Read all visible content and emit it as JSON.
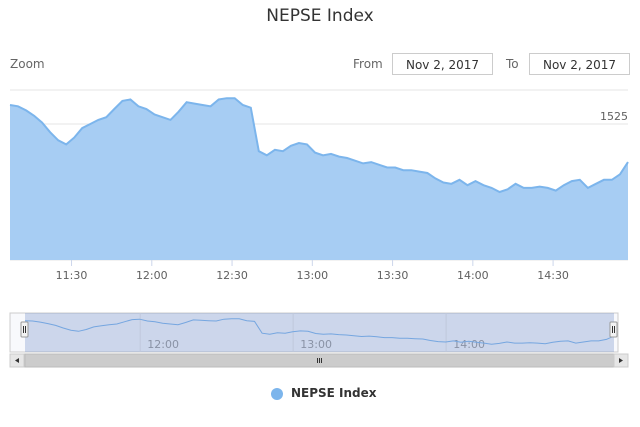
{
  "controls": {
    "zoom_label": "Zoom",
    "from_label": "From",
    "from_value": "Nov 2, 2017",
    "to_label": "To",
    "to_value": "Nov 2, 2017"
  },
  "colors": {
    "series_fill": "#a7cdf3",
    "series_line": "#7cb5ec",
    "navigator_mask": "rgba(102,133,194,0.3)",
    "grid": "#e6e6e6"
  },
  "chart_data": {
    "type": "area",
    "title": "NEPSE Index",
    "series": [
      {
        "name": "NEPSE Index",
        "x": [
          "11:07",
          "11:10",
          "11:13",
          "11:16",
          "11:19",
          "11:22",
          "11:25",
          "11:28",
          "11:31",
          "11:34",
          "11:37",
          "11:40",
          "11:43",
          "11:46",
          "11:49",
          "11:52",
          "11:55",
          "11:58",
          "12:01",
          "12:04",
          "12:07",
          "12:10",
          "12:13",
          "12:16",
          "12:19",
          "12:22",
          "12:25",
          "12:28",
          "12:31",
          "12:34",
          "12:37",
          "12:40",
          "12:43",
          "12:46",
          "12:49",
          "12:52",
          "12:55",
          "12:58",
          "13:01",
          "13:04",
          "13:07",
          "13:10",
          "13:13",
          "13:16",
          "13:19",
          "13:22",
          "13:25",
          "13:28",
          "13:31",
          "13:34",
          "13:37",
          "13:40",
          "13:43",
          "13:46",
          "13:49",
          "13:52",
          "13:55",
          "13:58",
          "14:01",
          "14:04",
          "14:07",
          "14:10",
          "14:13",
          "14:16",
          "14:19",
          "14:22",
          "14:25",
          "14:28",
          "14:31",
          "14:34",
          "14:37",
          "14:40",
          "14:43",
          "14:46",
          "14:49",
          "14:52",
          "14:55",
          "14:58"
        ],
        "values": [
          1526.4,
          1526.3,
          1526.0,
          1525.6,
          1525.1,
          1524.4,
          1523.8,
          1523.5,
          1524.0,
          1524.7,
          1525.0,
          1525.3,
          1525.5,
          1526.1,
          1526.7,
          1526.8,
          1526.3,
          1526.1,
          1525.7,
          1525.5,
          1525.3,
          1525.9,
          1526.6,
          1526.5,
          1526.4,
          1526.3,
          1526.8,
          1526.9,
          1526.9,
          1526.4,
          1526.2,
          1523.0,
          1522.7,
          1523.1,
          1523.0,
          1523.4,
          1523.6,
          1523.5,
          1522.9,
          1522.7,
          1522.8,
          1522.6,
          1522.5,
          1522.3,
          1522.1,
          1522.2,
          1522.0,
          1521.8,
          1521.8,
          1521.6,
          1521.6,
          1521.5,
          1521.4,
          1521.0,
          1520.7,
          1520.6,
          1520.9,
          1520.5,
          1520.8,
          1520.5,
          1520.3,
          1520.0,
          1520.2,
          1520.6,
          1520.3,
          1520.3,
          1520.4,
          1520.3,
          1520.1,
          1520.5,
          1520.8,
          1520.9,
          1520.3,
          1520.6,
          1520.9,
          1520.9,
          1521.3,
          1522.2
        ]
      }
    ],
    "xticks": [
      "11:30",
      "12:00",
      "12:30",
      "13:00",
      "13:30",
      "14:00",
      "14:30"
    ],
    "yticks": [
      1515,
      1520,
      1525
    ],
    "ylim": [
      1515,
      1527.5
    ],
    "navigator_ticks": [
      "12:00",
      "13:00",
      "14:00"
    ],
    "legend_position": "bottom-center",
    "grid": true
  }
}
